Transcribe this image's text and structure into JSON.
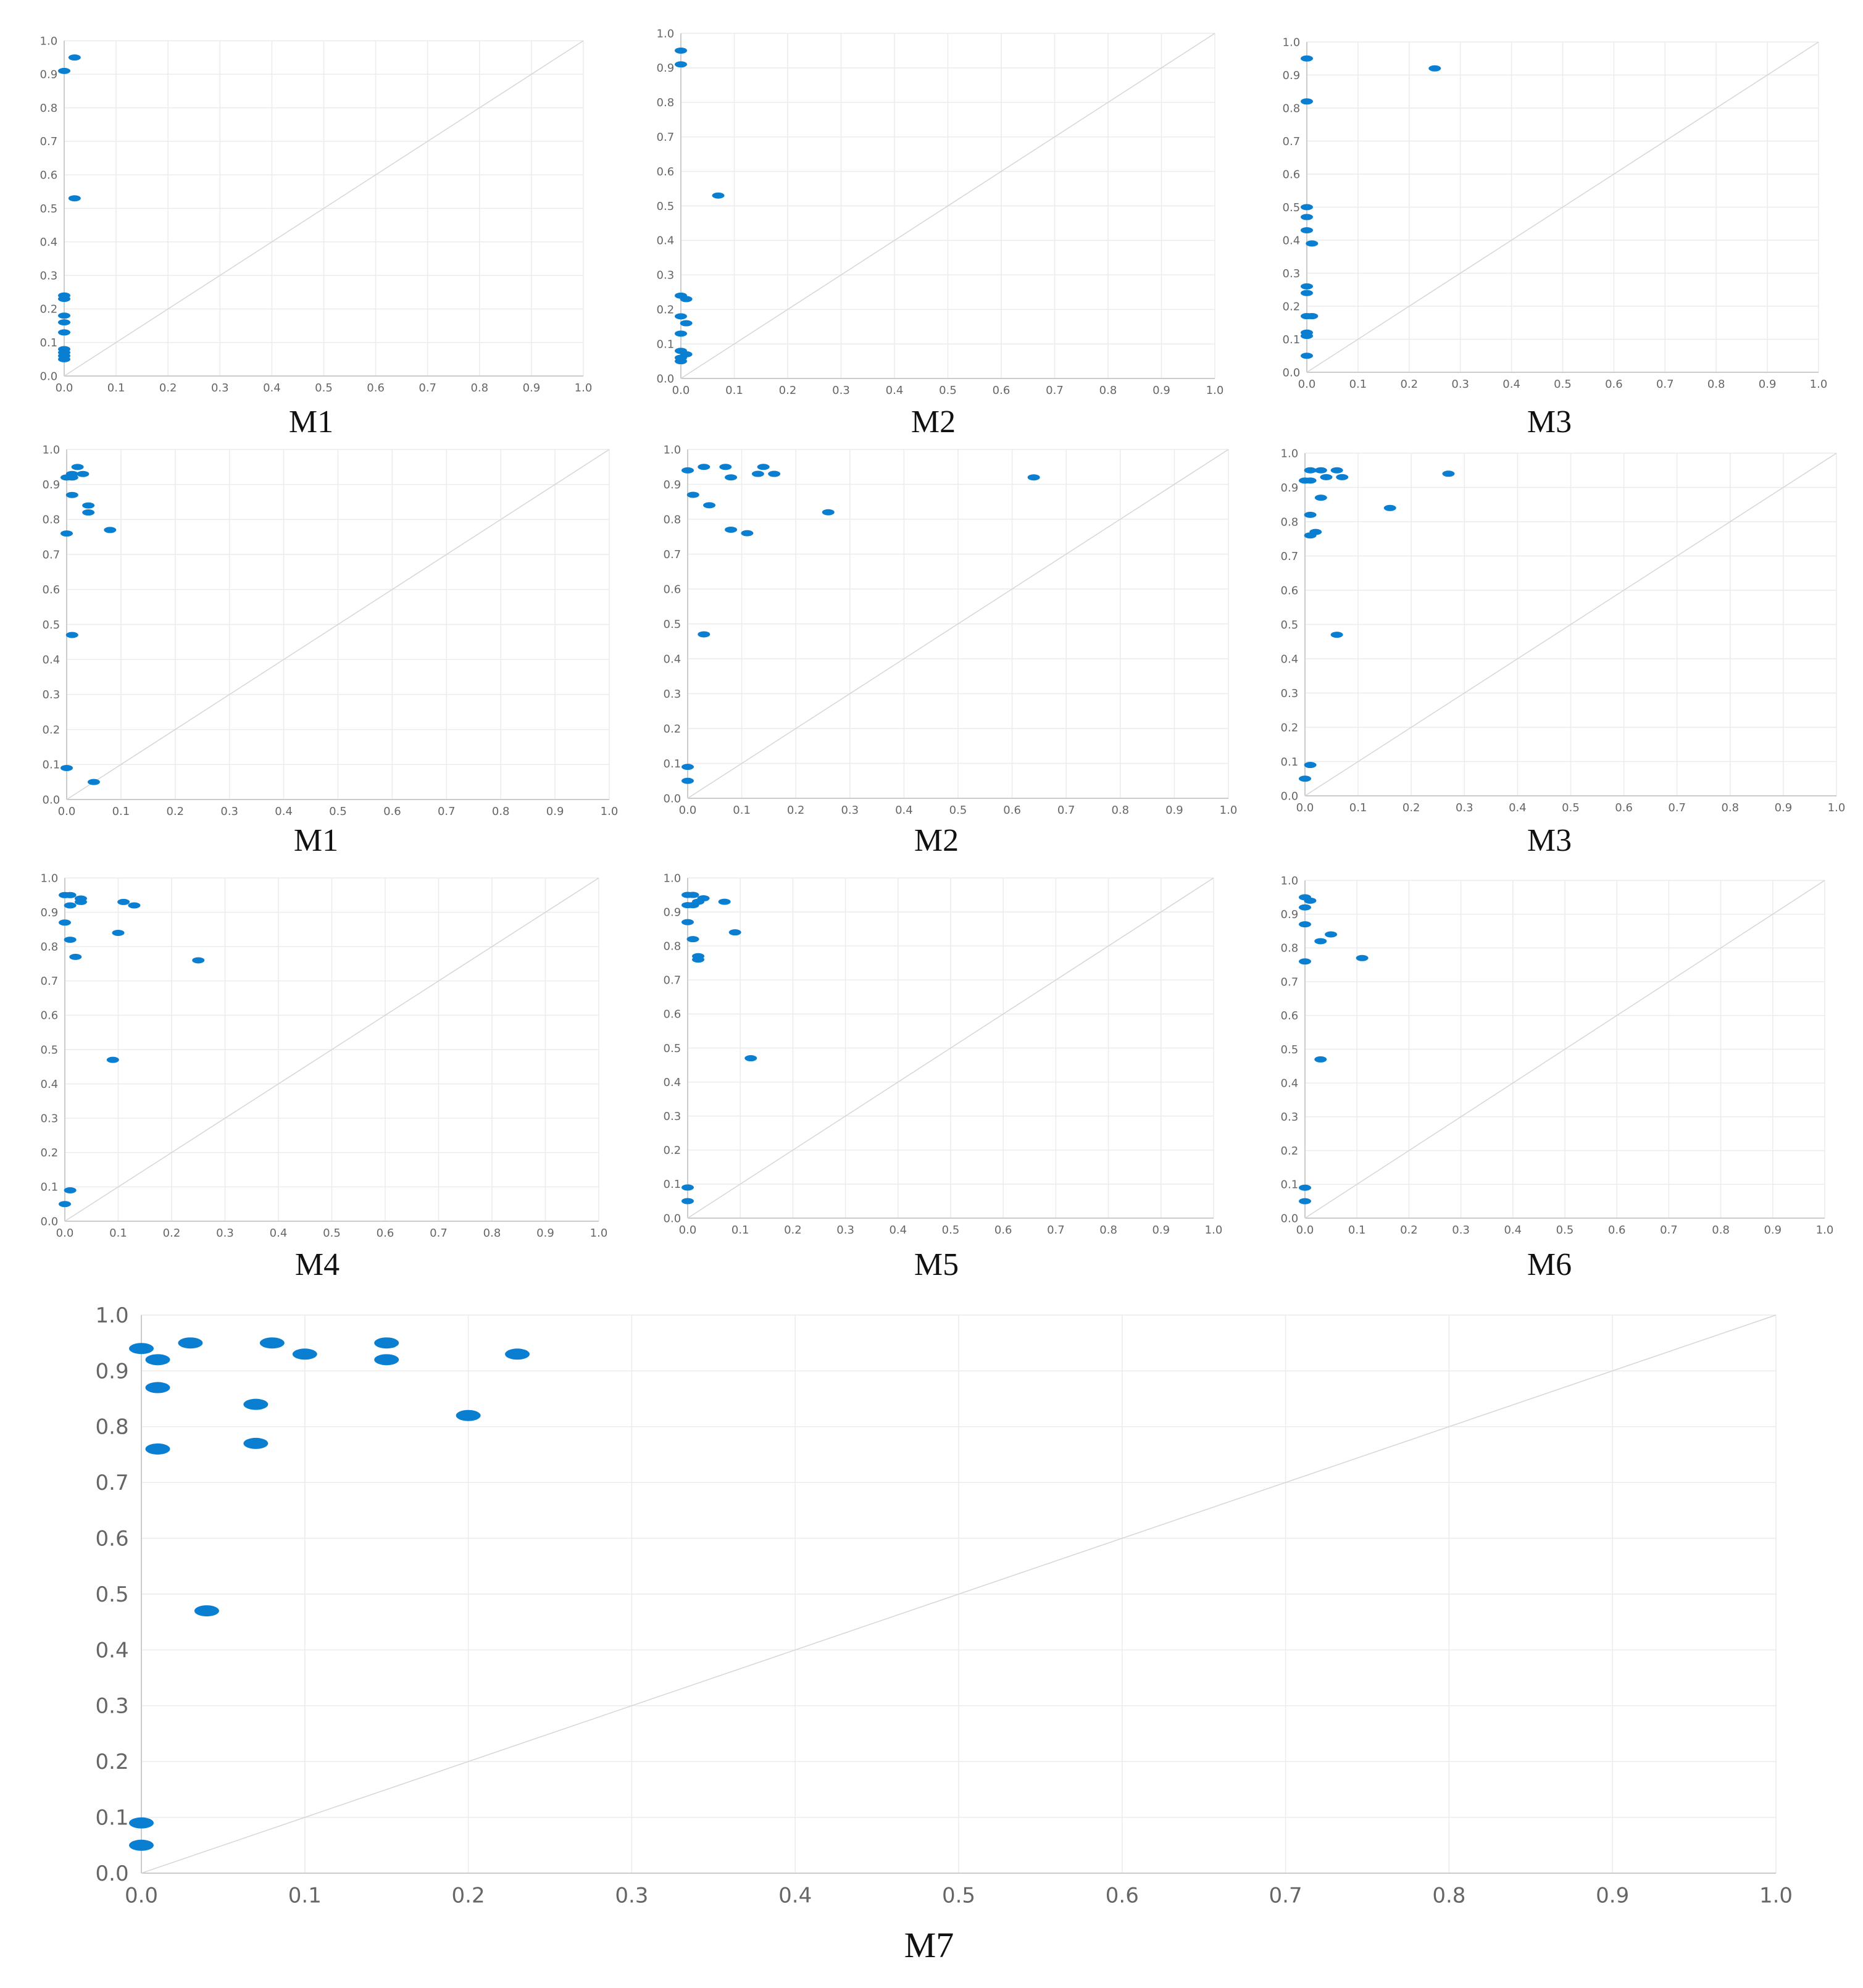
{
  "chart_data": [
    {
      "type": "scatter",
      "caption": "M1",
      "xticks": [
        "0.0",
        "0.1",
        "0.2",
        "0.3",
        "0.4",
        "0.5",
        "0.6",
        "0.7",
        "0.8",
        "0.9",
        "1.0"
      ],
      "yticks": [
        "0.0",
        "0.1",
        "0.2",
        "0.3",
        "0.4",
        "0.5",
        "0.6",
        "0.7",
        "0.8",
        "0.9",
        "1.0"
      ],
      "xlim": [
        0,
        1
      ],
      "ylim": [
        0,
        1
      ],
      "grid": true,
      "diagonal": true,
      "marker_color": "#0a7fd2",
      "points": [
        [
          0.0,
          0.91
        ],
        [
          0.02,
          0.95
        ],
        [
          0.02,
          0.53
        ],
        [
          0.0,
          0.24
        ],
        [
          0.0,
          0.23
        ],
        [
          0.0,
          0.18
        ],
        [
          0.0,
          0.16
        ],
        [
          0.0,
          0.13
        ],
        [
          0.0,
          0.08
        ],
        [
          0.0,
          0.07
        ],
        [
          0.0,
          0.06
        ],
        [
          0.0,
          0.05
        ]
      ]
    },
    {
      "type": "scatter",
      "caption": "M2",
      "xticks": [
        "0.0",
        "0.1",
        "0.2",
        "0.3",
        "0.4",
        "0.5",
        "0.6",
        "0.7",
        "0.8",
        "0.9",
        "1.0"
      ],
      "yticks": [
        "0.0",
        "0.1",
        "0.2",
        "0.3",
        "0.4",
        "0.5",
        "0.6",
        "0.7",
        "0.8",
        "0.9",
        "1.0"
      ],
      "xlim": [
        0,
        1
      ],
      "ylim": [
        0,
        1
      ],
      "grid": true,
      "diagonal": true,
      "marker_color": "#0a7fd2",
      "points": [
        [
          0.0,
          0.95
        ],
        [
          0.0,
          0.91
        ],
        [
          0.07,
          0.53
        ],
        [
          0.0,
          0.24
        ],
        [
          0.01,
          0.23
        ],
        [
          0.0,
          0.18
        ],
        [
          0.01,
          0.16
        ],
        [
          0.0,
          0.13
        ],
        [
          0.0,
          0.08
        ],
        [
          0.01,
          0.07
        ],
        [
          0.0,
          0.06
        ],
        [
          0.0,
          0.05
        ]
      ]
    },
    {
      "type": "scatter",
      "caption": "M3",
      "xticks": [
        "0.0",
        "0.1",
        "0.2",
        "0.3",
        "0.4",
        "0.5",
        "0.6",
        "0.7",
        "0.8",
        "0.9",
        "1.0"
      ],
      "yticks": [
        "0.0",
        "0.1",
        "0.2",
        "0.3",
        "0.4",
        "0.5",
        "0.6",
        "0.7",
        "0.8",
        "0.9",
        "1.0"
      ],
      "xlim": [
        0,
        1
      ],
      "ylim": [
        0,
        1
      ],
      "grid": true,
      "diagonal": true,
      "marker_color": "#0a7fd2",
      "points": [
        [
          0.0,
          0.95
        ],
        [
          0.25,
          0.92
        ],
        [
          0.0,
          0.82
        ],
        [
          0.0,
          0.5
        ],
        [
          0.0,
          0.47
        ],
        [
          0.0,
          0.43
        ],
        [
          0.01,
          0.39
        ],
        [
          0.0,
          0.26
        ],
        [
          0.0,
          0.24
        ],
        [
          0.0,
          0.17
        ],
        [
          0.01,
          0.17
        ],
        [
          0.0,
          0.12
        ],
        [
          0.0,
          0.11
        ],
        [
          0.0,
          0.05
        ]
      ]
    },
    {
      "type": "scatter",
      "caption": "M1",
      "xticks": [
        "0.0",
        "0.1",
        "0.2",
        "0.3",
        "0.4",
        "0.5",
        "0.6",
        "0.7",
        "0.8",
        "0.9",
        "1.0"
      ],
      "yticks": [
        "0.0",
        "0.1",
        "0.2",
        "0.3",
        "0.4",
        "0.5",
        "0.6",
        "0.7",
        "0.8",
        "0.9",
        "1.0"
      ],
      "xlim": [
        0,
        1
      ],
      "ylim": [
        0,
        1
      ],
      "grid": true,
      "diagonal": true,
      "marker_color": "#0a7fd2",
      "points": [
        [
          0.0,
          0.92
        ],
        [
          0.01,
          0.93
        ],
        [
          0.02,
          0.95
        ],
        [
          0.03,
          0.93
        ],
        [
          0.01,
          0.92
        ],
        [
          0.01,
          0.87
        ],
        [
          0.04,
          0.84
        ],
        [
          0.04,
          0.82
        ],
        [
          0.08,
          0.77
        ],
        [
          0.0,
          0.76
        ],
        [
          0.01,
          0.47
        ],
        [
          0.0,
          0.09
        ],
        [
          0.05,
          0.05
        ]
      ]
    },
    {
      "type": "scatter",
      "caption": "M2",
      "xticks": [
        "0.0",
        "0.1",
        "0.2",
        "0.3",
        "0.4",
        "0.5",
        "0.6",
        "0.7",
        "0.8",
        "0.9",
        "1.0"
      ],
      "yticks": [
        "0.0",
        "0.1",
        "0.2",
        "0.3",
        "0.4",
        "0.5",
        "0.6",
        "0.7",
        "0.8",
        "0.9",
        "1.0"
      ],
      "xlim": [
        0,
        1
      ],
      "ylim": [
        0,
        1
      ],
      "grid": true,
      "diagonal": true,
      "marker_color": "#0a7fd2",
      "points": [
        [
          0.0,
          0.94
        ],
        [
          0.03,
          0.95
        ],
        [
          0.07,
          0.95
        ],
        [
          0.08,
          0.92
        ],
        [
          0.13,
          0.93
        ],
        [
          0.14,
          0.95
        ],
        [
          0.16,
          0.93
        ],
        [
          0.64,
          0.92
        ],
        [
          0.01,
          0.87
        ],
        [
          0.04,
          0.84
        ],
        [
          0.26,
          0.82
        ],
        [
          0.08,
          0.77
        ],
        [
          0.11,
          0.76
        ],
        [
          0.03,
          0.47
        ],
        [
          0.0,
          0.09
        ],
        [
          0.0,
          0.05
        ]
      ]
    },
    {
      "type": "scatter",
      "caption": "M3",
      "xticks": [
        "0.0",
        "0.1",
        "0.2",
        "0.3",
        "0.4",
        "0.5",
        "0.6",
        "0.7",
        "0.8",
        "0.9",
        "1.0"
      ],
      "yticks": [
        "0.0",
        "0.1",
        "0.2",
        "0.3",
        "0.4",
        "0.5",
        "0.6",
        "0.7",
        "0.8",
        "0.9",
        "1.0"
      ],
      "xlim": [
        0,
        1
      ],
      "ylim": [
        0,
        1
      ],
      "grid": true,
      "diagonal": true,
      "marker_color": "#0a7fd2",
      "points": [
        [
          0.0,
          0.92
        ],
        [
          0.01,
          0.92
        ],
        [
          0.01,
          0.95
        ],
        [
          0.03,
          0.95
        ],
        [
          0.04,
          0.93
        ],
        [
          0.06,
          0.95
        ],
        [
          0.07,
          0.93
        ],
        [
          0.27,
          0.94
        ],
        [
          0.03,
          0.87
        ],
        [
          0.16,
          0.84
        ],
        [
          0.01,
          0.82
        ],
        [
          0.02,
          0.77
        ],
        [
          0.01,
          0.76
        ],
        [
          0.06,
          0.47
        ],
        [
          0.01,
          0.09
        ],
        [
          0.0,
          0.05
        ]
      ]
    },
    {
      "type": "scatter",
      "caption": "M4",
      "xticks": [
        "0.0",
        "0.1",
        "0.2",
        "0.3",
        "0.4",
        "0.5",
        "0.6",
        "0.7",
        "0.8",
        "0.9",
        "1.0"
      ],
      "yticks": [
        "0.0",
        "0.1",
        "0.2",
        "0.3",
        "0.4",
        "0.5",
        "0.6",
        "0.7",
        "0.8",
        "0.9",
        "1.0"
      ],
      "xlim": [
        0,
        1
      ],
      "ylim": [
        0,
        1
      ],
      "grid": true,
      "diagonal": true,
      "marker_color": "#0a7fd2",
      "points": [
        [
          0.0,
          0.95
        ],
        [
          0.01,
          0.95
        ],
        [
          0.01,
          0.92
        ],
        [
          0.03,
          0.94
        ],
        [
          0.03,
          0.93
        ],
        [
          0.11,
          0.93
        ],
        [
          0.13,
          0.92
        ],
        [
          0.0,
          0.87
        ],
        [
          0.1,
          0.84
        ],
        [
          0.01,
          0.82
        ],
        [
          0.02,
          0.77
        ],
        [
          0.25,
          0.76
        ],
        [
          0.09,
          0.47
        ],
        [
          0.01,
          0.09
        ],
        [
          0.0,
          0.05
        ]
      ]
    },
    {
      "type": "scatter",
      "caption": "M5",
      "xticks": [
        "0.0",
        "0.1",
        "0.2",
        "0.3",
        "0.4",
        "0.5",
        "0.6",
        "0.7",
        "0.8",
        "0.9",
        "1.0"
      ],
      "yticks": [
        "0.0",
        "0.1",
        "0.2",
        "0.3",
        "0.4",
        "0.5",
        "0.6",
        "0.7",
        "0.8",
        "0.9",
        "1.0"
      ],
      "xlim": [
        0,
        1
      ],
      "ylim": [
        0,
        1
      ],
      "grid": true,
      "diagonal": true,
      "marker_color": "#0a7fd2",
      "points": [
        [
          0.0,
          0.95
        ],
        [
          0.01,
          0.95
        ],
        [
          0.0,
          0.92
        ],
        [
          0.02,
          0.93
        ],
        [
          0.03,
          0.94
        ],
        [
          0.01,
          0.92
        ],
        [
          0.07,
          0.93
        ],
        [
          0.0,
          0.87
        ],
        [
          0.09,
          0.84
        ],
        [
          0.01,
          0.82
        ],
        [
          0.02,
          0.77
        ],
        [
          0.02,
          0.76
        ],
        [
          0.12,
          0.47
        ],
        [
          0.0,
          0.09
        ],
        [
          0.0,
          0.05
        ]
      ]
    },
    {
      "type": "scatter",
      "caption": "M6",
      "xticks": [
        "0.0",
        "0.1",
        "0.2",
        "0.3",
        "0.4",
        "0.5",
        "0.6",
        "0.7",
        "0.8",
        "0.9",
        "1.0"
      ],
      "yticks": [
        "0.0",
        "0.1",
        "0.2",
        "0.3",
        "0.4",
        "0.5",
        "0.6",
        "0.7",
        "0.8",
        "0.9",
        "1.0"
      ],
      "xlim": [
        0,
        1
      ],
      "ylim": [
        0,
        1
      ],
      "grid": true,
      "diagonal": true,
      "marker_color": "#0a7fd2",
      "points": [
        [
          0.0,
          0.95
        ],
        [
          0.01,
          0.94
        ],
        [
          0.0,
          0.92
        ],
        [
          0.0,
          0.87
        ],
        [
          0.05,
          0.84
        ],
        [
          0.03,
          0.82
        ],
        [
          0.11,
          0.77
        ],
        [
          0.0,
          0.76
        ],
        [
          0.03,
          0.47
        ],
        [
          0.0,
          0.09
        ],
        [
          0.0,
          0.05
        ]
      ]
    },
    {
      "type": "scatter",
      "caption": "M7",
      "xticks": [
        "0.0",
        "0.1",
        "0.2",
        "0.3",
        "0.4",
        "0.5",
        "0.6",
        "0.7",
        "0.8",
        "0.9",
        "1.0"
      ],
      "yticks": [
        "0.0",
        "0.1",
        "0.2",
        "0.3",
        "0.4",
        "0.5",
        "0.6",
        "0.7",
        "0.8",
        "0.9",
        "1.0"
      ],
      "xlim": [
        0,
        1
      ],
      "ylim": [
        0,
        1
      ],
      "grid": true,
      "diagonal": true,
      "marker_color": "#0a7fd2",
      "points": [
        [
          0.0,
          0.94
        ],
        [
          0.03,
          0.95
        ],
        [
          0.08,
          0.95
        ],
        [
          0.15,
          0.95
        ],
        [
          0.01,
          0.92
        ],
        [
          0.1,
          0.93
        ],
        [
          0.15,
          0.92
        ],
        [
          0.23,
          0.93
        ],
        [
          0.01,
          0.87
        ],
        [
          0.07,
          0.84
        ],
        [
          0.2,
          0.82
        ],
        [
          0.07,
          0.77
        ],
        [
          0.01,
          0.76
        ],
        [
          0.04,
          0.47
        ],
        [
          0.0,
          0.09
        ],
        [
          0.0,
          0.05
        ]
      ]
    }
  ]
}
